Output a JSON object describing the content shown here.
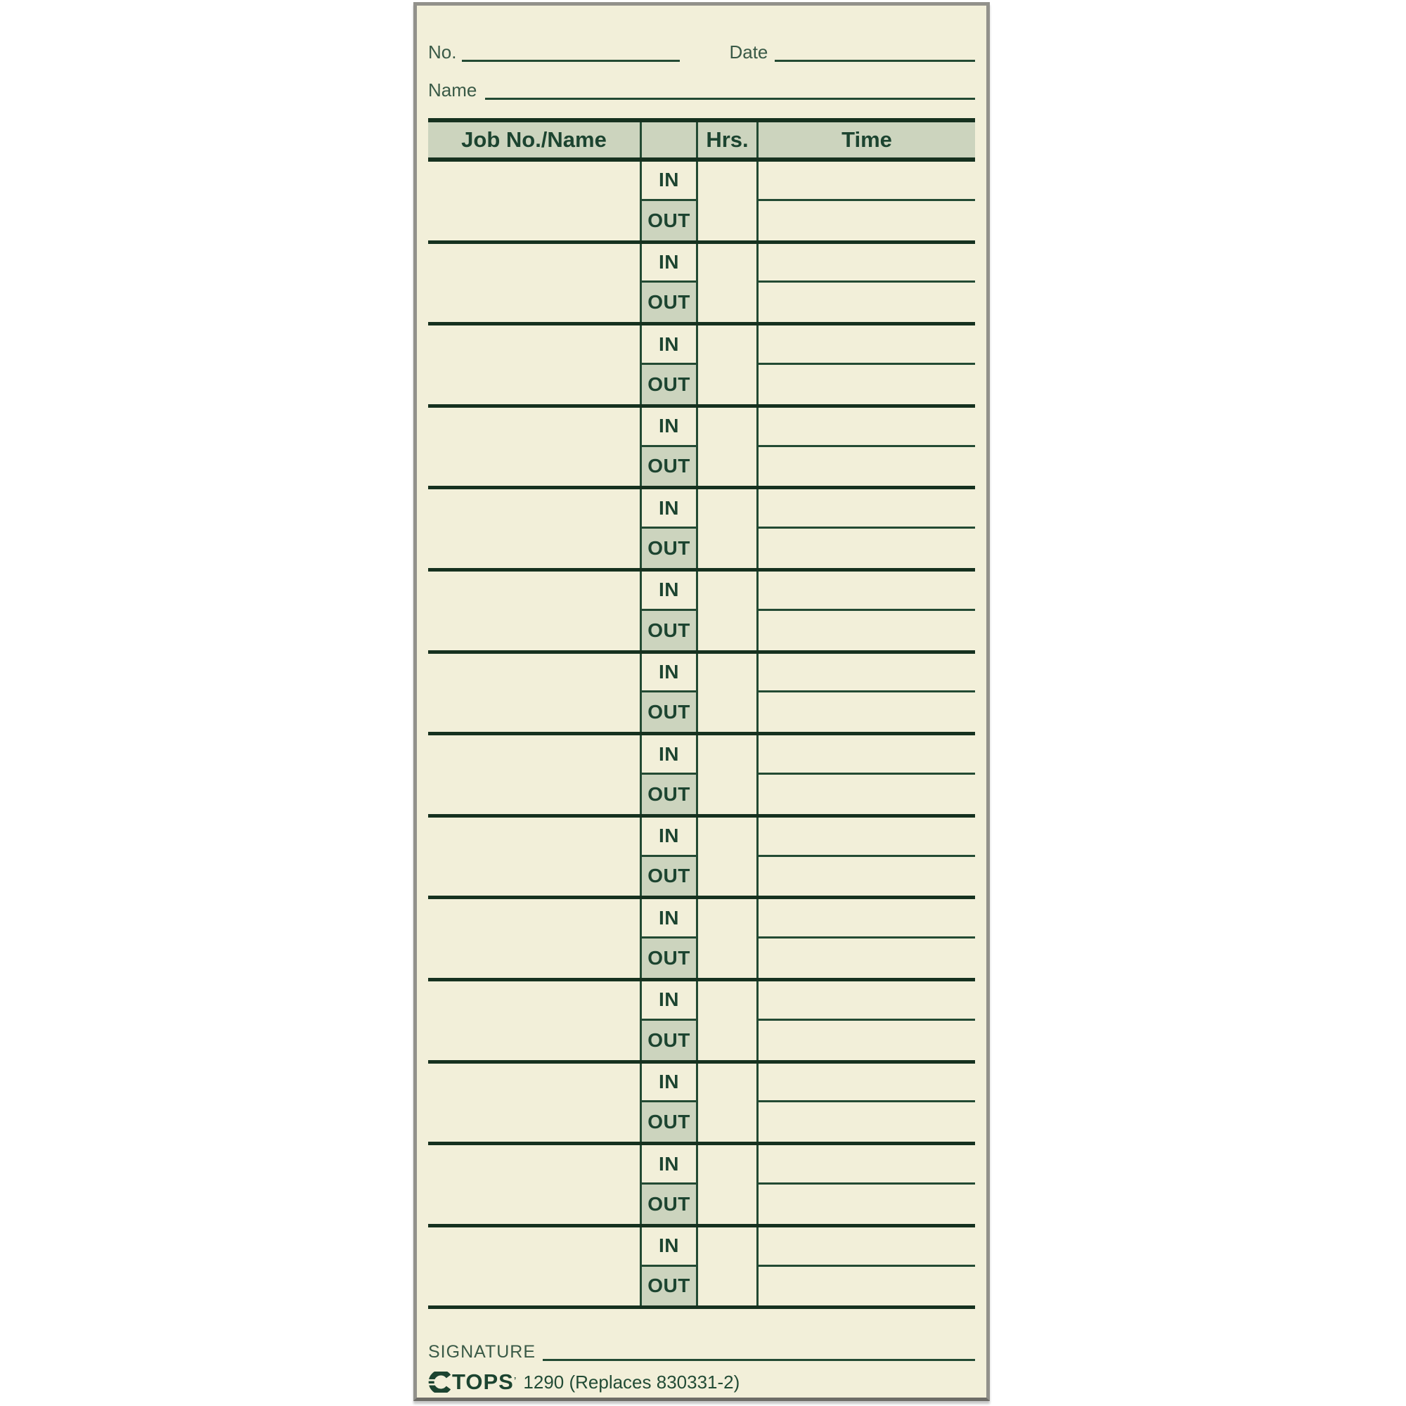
{
  "card": {
    "no_label": "No.",
    "date_label": "Date",
    "name_label": "Name",
    "signature_label": "SIGNATURE",
    "table": {
      "headers": {
        "job": "Job No./Name",
        "io": "",
        "hrs": "Hrs.",
        "time": "Time"
      },
      "in_label": "IN",
      "out_label": "OUT",
      "row_count": 14
    },
    "footer": {
      "brand": "TOPS",
      "brand_mark": "’",
      "product_info": "1290 (Replaces 830331-2)"
    },
    "colors": {
      "card_bg": "#f2efd9",
      "shade": "#ccd4be",
      "ink": "#1c4430",
      "label_ink": "#3a5a47",
      "line": "#234a33",
      "heavy": "#16311f",
      "border": "#92918b"
    }
  }
}
